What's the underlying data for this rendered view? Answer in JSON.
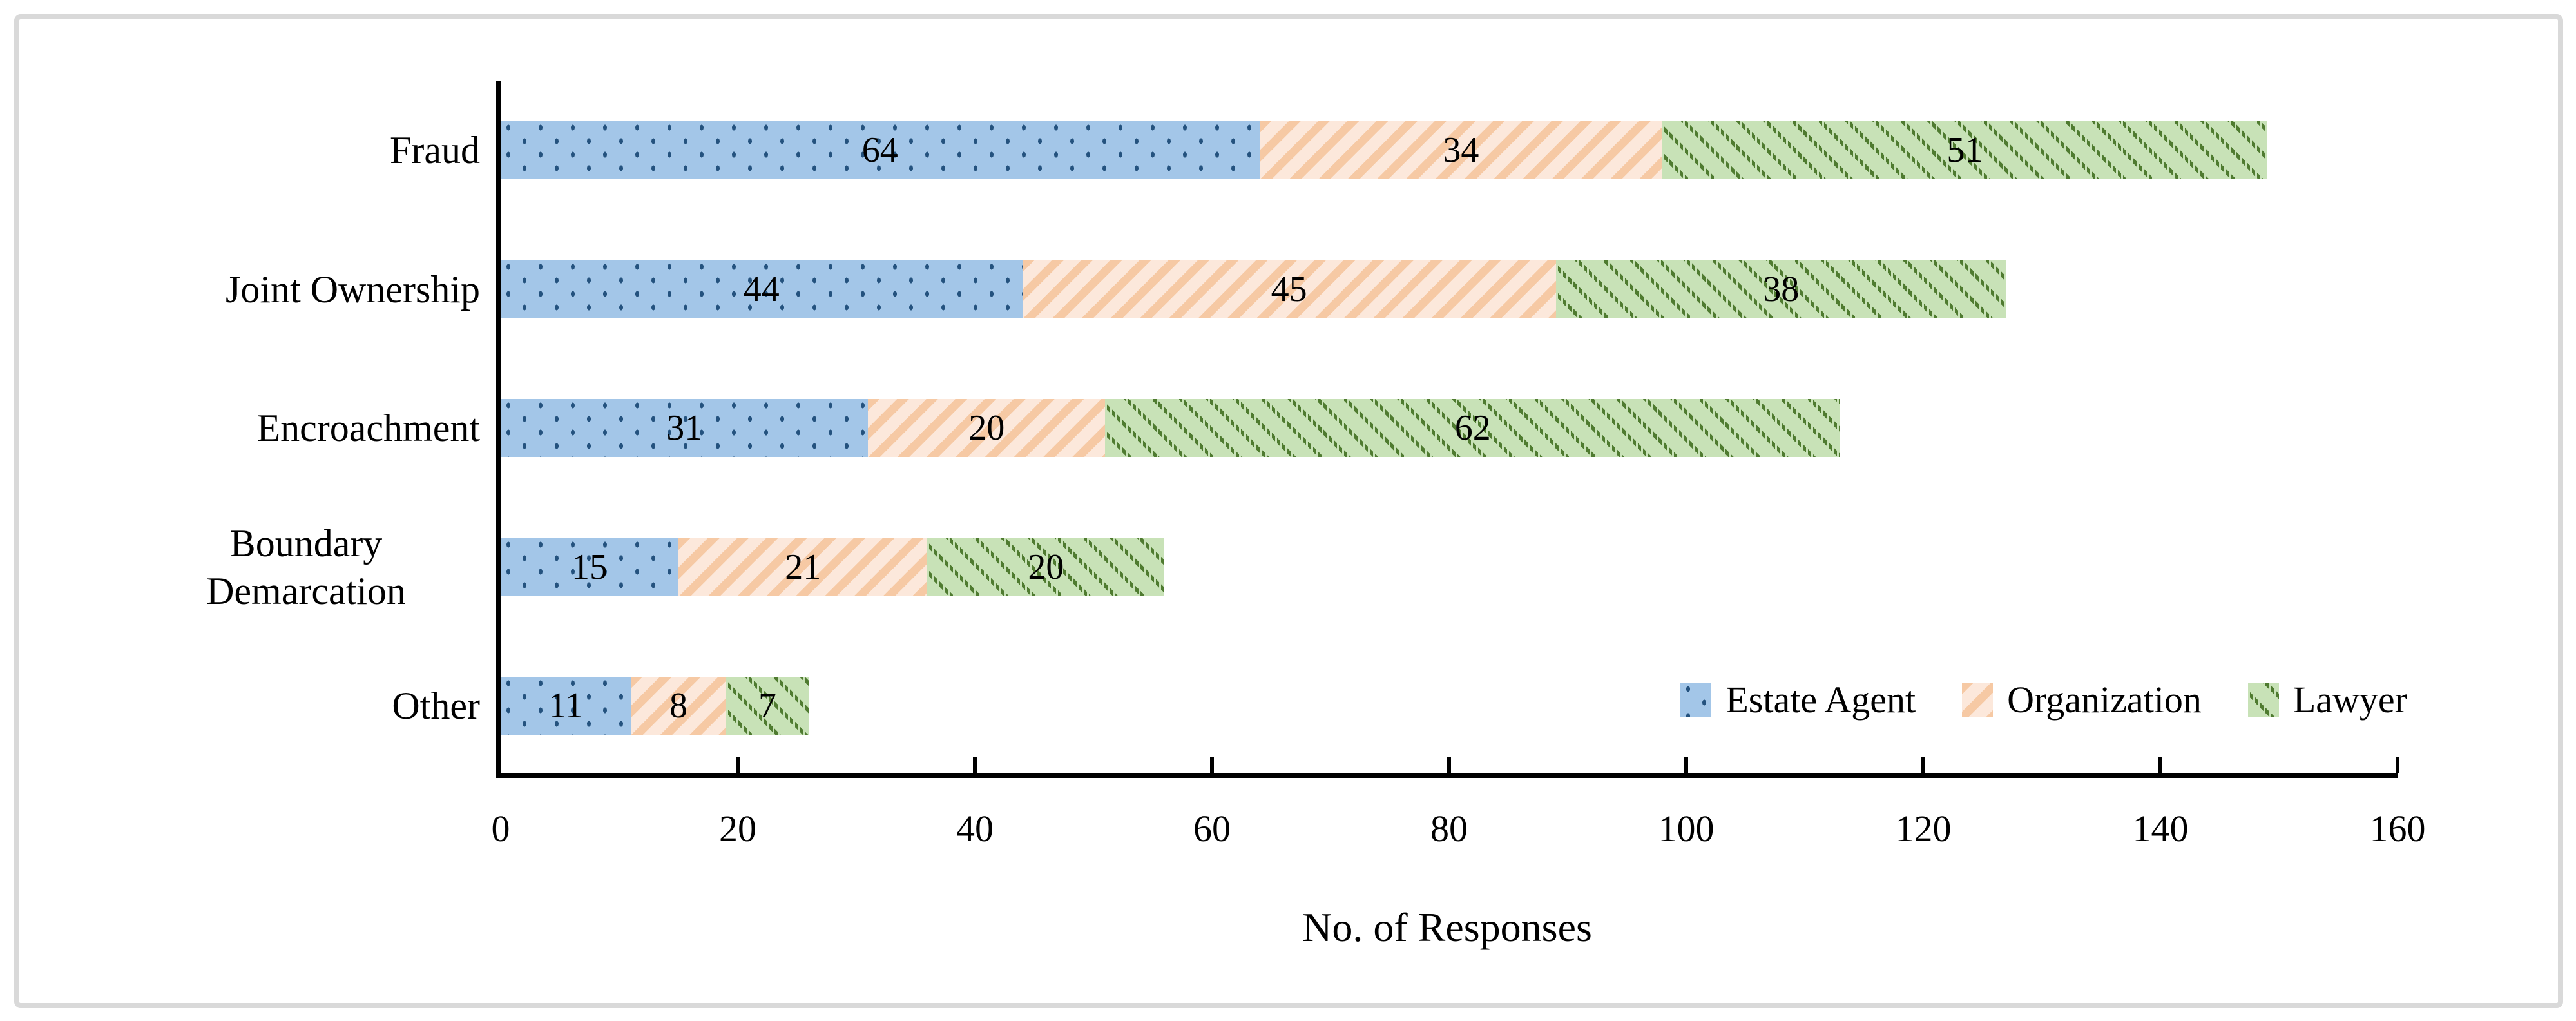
{
  "chart_data": {
    "type": "bar",
    "orientation": "horizontal-stacked",
    "title": "",
    "categories": [
      "Fraud",
      "Joint Ownership",
      "Encroachment",
      "Boundary Demarcation",
      "Other"
    ],
    "series": [
      {
        "name": "Estate Agent",
        "values": [
          64,
          44,
          31,
          15,
          11
        ],
        "fill": "#A3C6E8",
        "accent": "#24527E",
        "pattern": "dots"
      },
      {
        "name": "Organization",
        "values": [
          34,
          45,
          20,
          21,
          8
        ],
        "fill": "#FCE8DB",
        "accent": "#F6C9A4",
        "pattern": "diagonal-stripes-up"
      },
      {
        "name": "Lawyer",
        "values": [
          51,
          38,
          62,
          20,
          7
        ],
        "fill": "#C8E2B7",
        "accent": "#4F7B30",
        "pattern": "dashed-diagonal-down"
      }
    ],
    "totals": [
      149,
      127,
      113,
      56,
      26
    ],
    "xlabel": "No. of Responses",
    "xlim": [
      0,
      160
    ],
    "xticks": [
      0,
      20,
      40,
      60,
      80,
      100,
      120,
      140,
      160
    ],
    "grid": false,
    "legend_position": "bottom-right-inside",
    "data_labels": "inside-center"
  },
  "frame": {
    "border_color": "#D9D9D9",
    "background": "#FFFFFF"
  }
}
